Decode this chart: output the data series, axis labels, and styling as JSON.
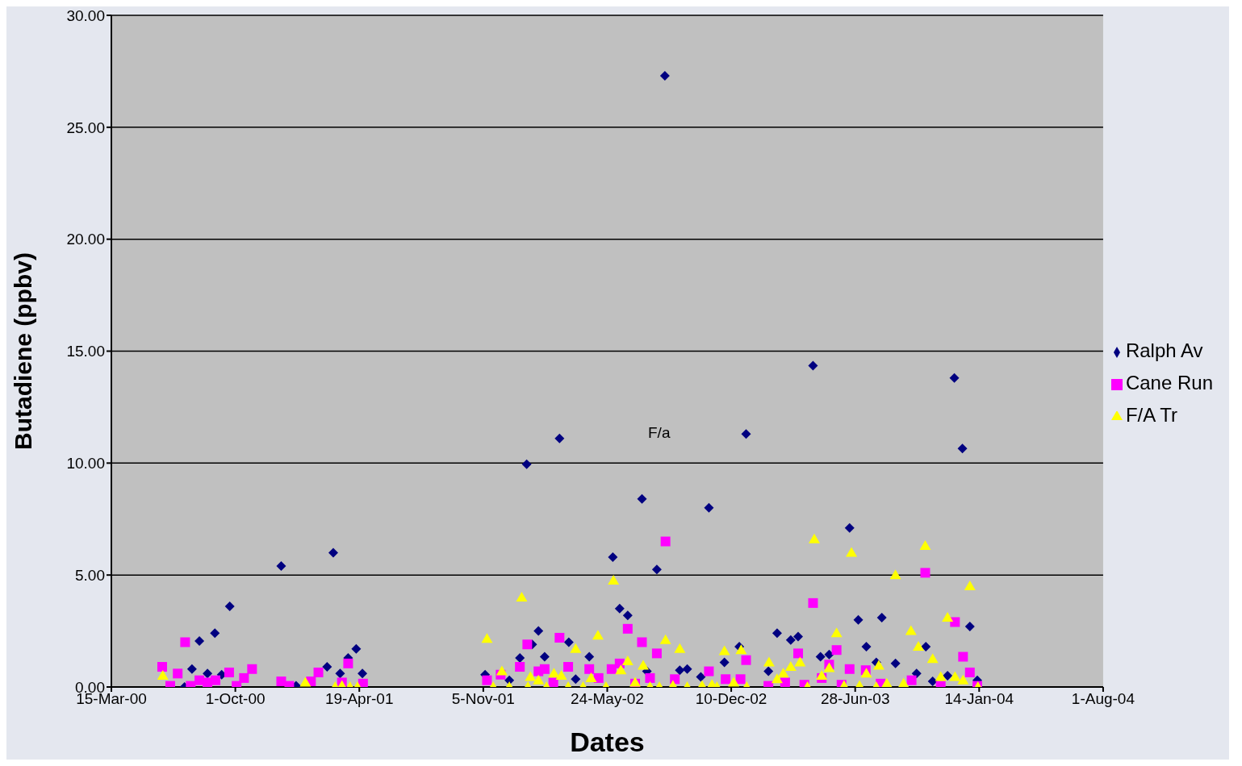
{
  "chart_data": {
    "type": "scatter",
    "xlabel": "Dates",
    "ylabel": "Butadiene (ppbv)",
    "legend": "right",
    "grid": "y",
    "xlim": [
      "2000-03-15",
      "2004-08-01"
    ],
    "xticks": [
      {
        "value": "2000-03-15",
        "label": "15-Mar-00"
      },
      {
        "value": "2000-10-01",
        "label": "1-Oct-00"
      },
      {
        "value": "2001-04-19",
        "label": "19-Apr-01"
      },
      {
        "value": "2001-11-05",
        "label": "5-Nov-01"
      },
      {
        "value": "2002-05-24",
        "label": "24-May-02"
      },
      {
        "value": "2002-12-10",
        "label": "10-Dec-02"
      },
      {
        "value": "2003-06-28",
        "label": "28-Jun-03"
      },
      {
        "value": "2004-01-14",
        "label": "14-Jan-04"
      },
      {
        "value": "2004-08-01",
        "label": "1-Aug-04"
      }
    ],
    "ylim": [
      0,
      30
    ],
    "yticks": [
      {
        "value": 0,
        "label": "0.00"
      },
      {
        "value": 5,
        "label": "5.00"
      },
      {
        "value": 10,
        "label": "10.00"
      },
      {
        "value": 15,
        "label": "15.00"
      },
      {
        "value": 20,
        "label": "20.00"
      },
      {
        "value": 25,
        "label": "25.00"
      },
      {
        "value": 30,
        "label": "30.00"
      }
    ],
    "annotations": [
      "F/a"
    ],
    "series": [
      {
        "name": "Ralph Av",
        "color": "#000080",
        "marker": "diamond",
        "x": [
          "2000-07-11",
          "2000-07-23",
          "2000-08-04",
          "2000-08-17",
          "2000-08-29",
          "2000-09-09",
          "2000-09-22",
          "2000-12-14",
          "2001-01-07",
          "2001-02-26",
          "2001-03-08",
          "2001-03-19",
          "2001-04-01",
          "2001-04-14",
          "2001-04-24",
          "2001-11-08",
          "2001-12-17",
          "2002-01-03",
          "2002-01-14",
          "2002-01-23",
          "2002-02-02",
          "2002-02-12",
          "2002-03-08",
          "2002-03-23",
          "2002-04-03",
          "2002-04-25",
          "2002-06-02",
          "2002-06-13",
          "2002-06-26",
          "2002-07-19",
          "2002-07-27",
          "2002-08-12",
          "2002-08-25",
          "2002-09-18",
          "2002-09-30",
          "2002-10-22",
          "2002-11-04",
          "2002-11-29",
          "2002-12-23",
          "2003-01-03",
          "2003-02-08",
          "2003-02-22",
          "2003-03-16",
          "2003-03-28",
          "2003-04-21",
          "2003-05-03",
          "2003-05-17",
          "2003-06-19",
          "2003-07-03",
          "2003-07-16",
          "2003-08-01",
          "2003-08-10",
          "2003-09-01",
          "2003-10-05",
          "2003-10-20",
          "2003-10-31",
          "2003-11-24",
          "2003-12-05",
          "2003-12-18",
          "2003-12-30",
          "2004-01-11"
        ],
        "values": [
          0,
          0.8,
          2.05,
          0.6,
          2.4,
          0.55,
          3.6,
          5.4,
          0.05,
          0.9,
          6.0,
          0.6,
          1.3,
          1.7,
          0.6,
          0.55,
          0.3,
          1.3,
          9.95,
          1.9,
          2.5,
          1.35,
          11.1,
          2.0,
          0.35,
          1.35,
          5.8,
          3.5,
          3.2,
          8.4,
          0.7,
          5.25,
          27.3,
          0.75,
          0.8,
          0.45,
          8.0,
          1.1,
          1.8,
          11.3,
          0.7,
          2.4,
          2.1,
          2.25,
          14.35,
          1.35,
          1.45,
          7.1,
          3.0,
          1.8,
          1.1,
          3.1,
          1.05,
          0.6,
          1.8,
          0.25,
          0.5,
          13.8,
          10.65,
          2.7,
          0.3
        ]
      },
      {
        "name": "Cane Run",
        "color": "#ff00ff",
        "marker": "square",
        "x": [
          "2000-06-05",
          "2000-06-18",
          "2000-06-30",
          "2000-07-12",
          "2000-07-21",
          "2000-08-04",
          "2000-08-17",
          "2000-08-30",
          "2000-09-21",
          "2000-10-03",
          "2000-10-15",
          "2000-10-28",
          "2000-12-14",
          "2000-12-27",
          "2001-01-31",
          "2001-02-12",
          "2001-03-22",
          "2001-04-01",
          "2001-04-25",
          "2001-11-11",
          "2001-12-03",
          "2002-01-03",
          "2002-01-15",
          "2002-02-02",
          "2002-02-12",
          "2002-02-26",
          "2002-03-08",
          "2002-03-22",
          "2002-04-25",
          "2002-05-10",
          "2002-05-31",
          "2002-06-13",
          "2002-06-26",
          "2002-07-08",
          "2002-07-19",
          "2002-08-01",
          "2002-08-12",
          "2002-08-26",
          "2002-09-10",
          "2002-11-04",
          "2002-12-01",
          "2002-12-25",
          "2003-01-03",
          "2003-02-08",
          "2003-03-07",
          "2003-03-28",
          "2003-04-07",
          "2003-04-21",
          "2003-05-05",
          "2003-05-17",
          "2003-05-29",
          "2003-06-06",
          "2003-06-19",
          "2003-07-15",
          "2003-08-08",
          "2003-09-27",
          "2003-10-19",
          "2003-11-13",
          "2003-12-06",
          "2003-12-19",
          "2003-12-30",
          "2004-01-11"
        ],
        "values": [
          0.9,
          0.05,
          0.6,
          2.0,
          0.05,
          0.3,
          0.2,
          0.3,
          0.65,
          0.05,
          0.4,
          0.8,
          0.25,
          0.05,
          0.25,
          0.65,
          0.2,
          1.05,
          0.15,
          0.3,
          0.55,
          0.9,
          1.9,
          0.7,
          0.8,
          0.2,
          2.2,
          0.9,
          0.8,
          0.4,
          0.8,
          1.05,
          2.6,
          0.15,
          2.0,
          0.4,
          1.5,
          6.5,
          0.35,
          0.7,
          0.35,
          0.35,
          1.2,
          0.05,
          0.2,
          1.5,
          0.1,
          3.75,
          0.4,
          1.0,
          1.65,
          0.1,
          0.8,
          0.75,
          0.15,
          0.3,
          5.1,
          0.05,
          2.9,
          1.35,
          0.65,
          0.05
        ]
      },
      {
        "name": "F/A Tr",
        "color": "#ffff00",
        "marker": "triangle",
        "x": [
          "2000-06-06",
          "2001-01-22",
          "2001-03-11",
          "2001-03-22",
          "2001-04-04",
          "2001-04-16",
          "2001-11-11",
          "2001-11-21",
          "2001-12-05",
          "2001-12-17",
          "2002-01-06",
          "2002-01-16",
          "2002-01-20",
          "2002-02-02",
          "2002-02-15",
          "2002-02-27",
          "2002-03-11",
          "2002-03-22",
          "2002-04-03",
          "2002-04-15",
          "2002-04-28",
          "2002-05-09",
          "2002-05-22",
          "2002-06-03",
          "2002-06-15",
          "2002-06-26",
          "2002-07-08",
          "2002-07-21",
          "2002-08-01",
          "2002-08-16",
          "2002-08-26",
          "2002-09-07",
          "2002-09-18",
          "2002-09-30",
          "2002-10-24",
          "2002-11-09",
          "2002-11-17",
          "2002-11-29",
          "2002-12-14",
          "2002-12-26",
          "2003-01-04",
          "2003-02-09",
          "2003-02-22",
          "2003-03-04",
          "2003-03-16",
          "2003-03-31",
          "2003-04-12",
          "2003-04-23",
          "2003-05-05",
          "2003-05-17",
          "2003-05-29",
          "2003-06-10",
          "2003-06-22",
          "2003-07-05",
          "2003-07-16",
          "2003-08-01",
          "2003-08-05",
          "2003-08-18",
          "2003-09-01",
          "2003-09-14",
          "2003-09-26",
          "2003-10-08",
          "2003-10-19",
          "2003-10-31",
          "2003-11-13",
          "2003-11-24",
          "2003-12-06",
          "2003-12-19",
          "2003-12-30",
          "2004-01-12"
        ],
        "values": [
          0.5,
          0.2,
          0,
          0.05,
          0,
          0,
          2.15,
          0,
          0.7,
          0,
          4.0,
          0,
          0.45,
          0.3,
          0,
          0.6,
          0.5,
          0,
          1.7,
          0,
          0.4,
          2.3,
          0,
          4.75,
          0.75,
          1.15,
          0.2,
          0.95,
          0,
          0,
          2.1,
          0.05,
          1.7,
          0,
          0.05,
          0.1,
          0,
          1.6,
          0.2,
          1.65,
          0,
          1.1,
          0.35,
          0.6,
          0.9,
          1.1,
          0,
          6.6,
          0.5,
          0.85,
          2.4,
          0.05,
          6.0,
          0.05,
          0.6,
          0,
          0.95,
          0.15,
          5.0,
          0.15,
          2.5,
          1.8,
          6.3,
          1.25,
          0.45,
          3.1,
          0.45,
          0.3,
          4.5,
          0
        ]
      }
    ]
  }
}
